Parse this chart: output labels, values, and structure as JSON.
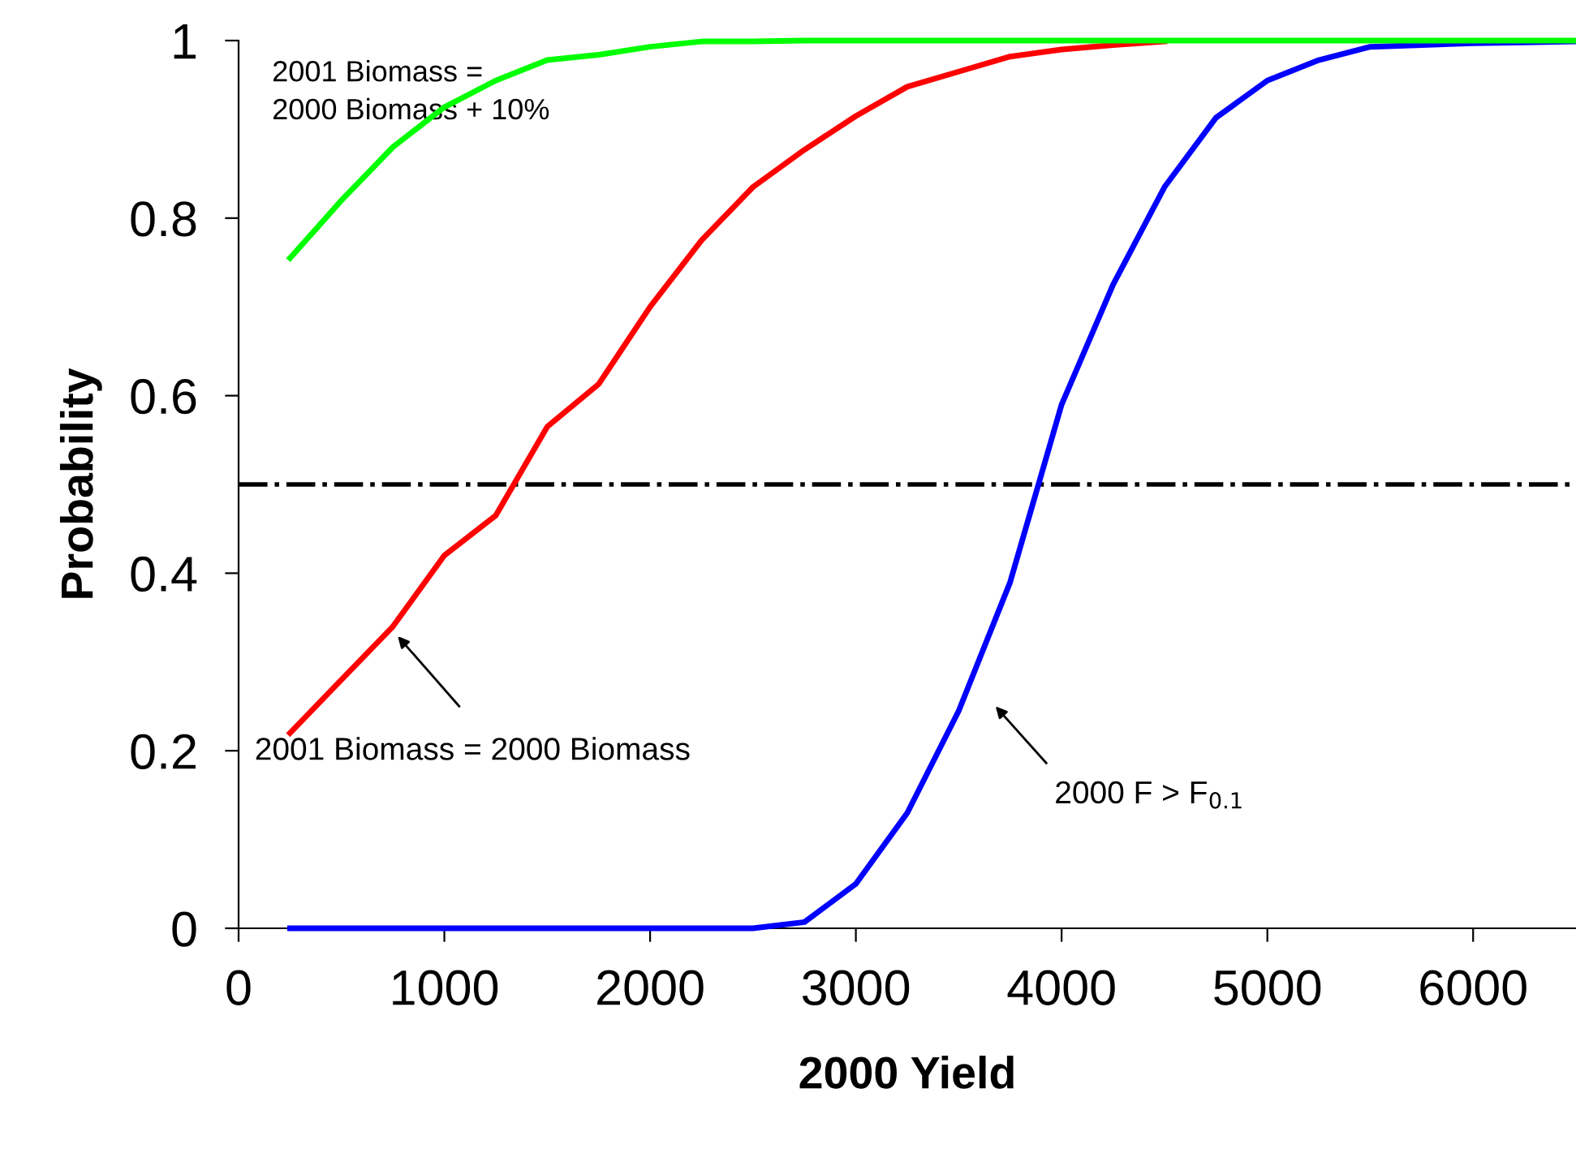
{
  "chart_data": {
    "type": "line",
    "xlabel": "2000 Yield",
    "ylabel": "Probability",
    "x": [
      250,
      500,
      750,
      1000,
      1250,
      1500,
      1750,
      2000,
      2250,
      2500,
      2750,
      3000,
      3250,
      3500,
      3750,
      4000,
      4250,
      4500,
      4750,
      5000,
      5250,
      5500,
      5750,
      6000,
      6250,
      6500
    ],
    "series": [
      {
        "color": "#00ff00",
        "values": [
          0.755,
          0.82,
          0.88,
          0.925,
          0.955,
          0.978,
          0.984,
          0.993,
          0.999,
          0.999,
          1,
          1,
          1,
          1,
          1,
          1,
          1,
          1,
          1,
          1,
          1,
          1,
          1,
          1,
          1,
          1
        ]
      },
      {
        "color": "#ff0000",
        "values": [
          0.22,
          0.28,
          0.34,
          0.42,
          0.465,
          0.565,
          0.613,
          0.7,
          0.775,
          0.835,
          0.877,
          0.915,
          0.948,
          0.965,
          0.982,
          0.99,
          0.995,
          0.999,
          null,
          null,
          null,
          null,
          null,
          null,
          null,
          null
        ]
      },
      {
        "color": "#0000ff",
        "values": [
          0,
          0,
          0,
          0,
          0,
          0,
          0,
          0,
          0,
          0,
          0.007,
          0.05,
          0.13,
          0.245,
          0.39,
          0.59,
          0.725,
          0.835,
          0.913,
          0.955,
          0.978,
          0.993,
          0.995,
          0.997,
          0.998,
          0.999
        ]
      }
    ],
    "xlim": [
      0,
      6500
    ],
    "xticks": [
      0,
      1000,
      2000,
      3000,
      4000,
      5000,
      6000
    ],
    "ylim": [
      0,
      1
    ],
    "yticks": [
      0,
      {
        "value": 0.2,
        "label": "0.2"
      },
      {
        "value": 0.4,
        "label": "0.4"
      },
      {
        "value": 0.6,
        "label": "0.6"
      },
      {
        "value": 0.8,
        "label": "0.8"
      },
      1
    ],
    "ref_lines": [
      {
        "axis": "y",
        "value": 0.5,
        "color": "#000000",
        "line_style": "dashdot"
      }
    ],
    "annotations": [
      "2001 Biomass =\n2000 Biomass + 10%",
      "2001 Biomass = 2000 Biomass",
      "2000 F > F$_{0.1}$"
    ],
    "grid": false,
    "marker": "none",
    "line_style": "solid"
  }
}
